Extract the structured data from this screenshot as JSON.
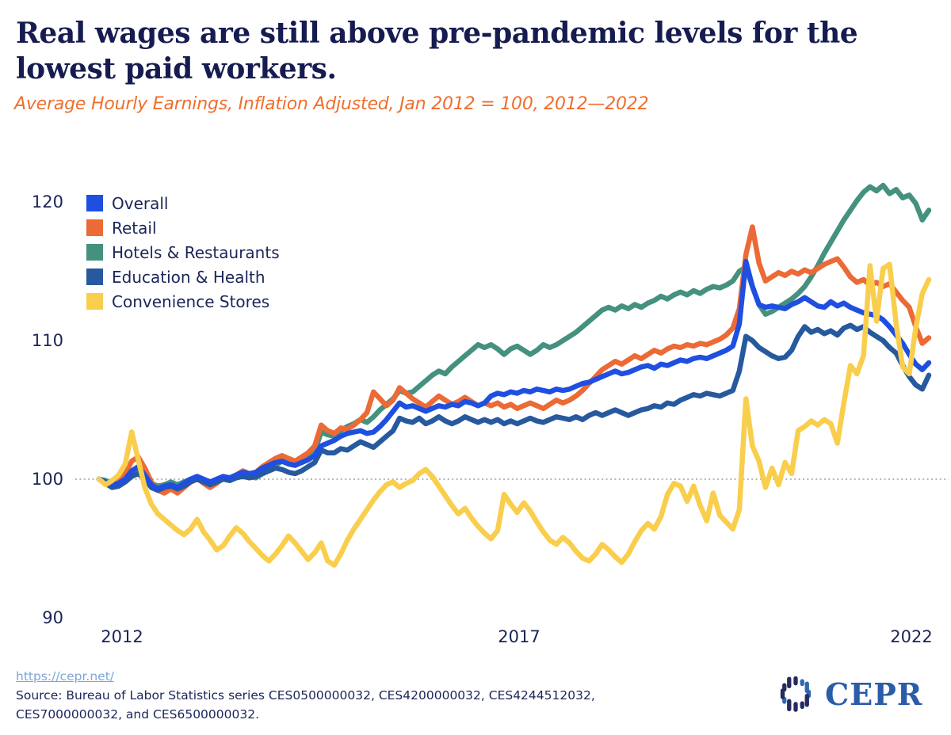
{
  "header": {
    "title_line1": "Real wages are still above pre-pandemic levels for the",
    "title_line2": "lowest paid workers.",
    "subtitle": "Average Hourly Earnings, Inflation Adjusted, Jan 2012 = 100, 2012—2022"
  },
  "chart_data": {
    "type": "line",
    "title": "Real wages are still above pre-pandemic levels for the lowest paid workers.",
    "subtitle": "Average Hourly Earnings, Inflation Adjusted, Jan 2012 = 100, 2012—2022",
    "x_start": "2012-01",
    "x_end": "2022-08",
    "frequency": "monthly",
    "x_tick_labels": [
      "2012",
      "2017",
      "2022"
    ],
    "y_ticks": [
      120,
      110,
      100,
      90
    ],
    "ylim": [
      88,
      122
    ],
    "baseline_gridline": 100,
    "grid": "dotted horizontal line at 100 only",
    "legend_position": "top-left inside plot",
    "series": [
      {
        "key": "overall",
        "name": "Overall",
        "color": "#1e4fe0",
        "values": [
          100,
          99.8,
          99.6,
          99.7,
          100,
          100.6,
          100.9,
          100.3,
          99.6,
          99.3,
          99.5,
          99.6,
          99.4,
          99.7,
          100,
          100.2,
          100,
          99.8,
          100,
          100.2,
          100.1,
          100.3,
          100.5,
          100.4,
          100.5,
          100.8,
          101,
          101.2,
          101.3,
          101.1,
          101,
          101.2,
          101.4,
          101.7,
          102.4,
          102.6,
          102.8,
          103.1,
          103.3,
          103.4,
          103.5,
          103.3,
          103.4,
          103.8,
          104.3,
          104.9,
          105.5,
          105.2,
          105.3,
          105.1,
          104.9,
          105.1,
          105.3,
          105.2,
          105.4,
          105.3,
          105.6,
          105.5,
          105.3,
          105.5,
          106,
          106.2,
          106.1,
          106.3,
          106.2,
          106.4,
          106.3,
          106.5,
          106.4,
          106.3,
          106.5,
          106.4,
          106.5,
          106.7,
          106.9,
          107,
          107.2,
          107.4,
          107.6,
          107.8,
          107.6,
          107.7,
          107.9,
          108.1,
          108.2,
          108,
          108.3,
          108.2,
          108.4,
          108.6,
          108.5,
          108.7,
          108.8,
          108.7,
          108.9,
          109.1,
          109.3,
          109.6,
          111.2,
          115.7,
          113.9,
          112.6,
          112.4,
          112.5,
          112.4,
          112.3,
          112.6,
          112.8,
          113.1,
          112.8,
          112.5,
          112.4,
          112.8,
          112.5,
          112.7,
          112.4,
          112.2,
          112,
          111.9,
          111.8,
          111.5,
          111,
          110.4,
          109.8,
          109,
          108.3,
          107.9,
          108.4
        ]
      },
      {
        "key": "retail",
        "name": "Retail",
        "color": "#ec6a35",
        "values": [
          100,
          99.7,
          99.5,
          99.8,
          100.4,
          101.3,
          101.6,
          100.8,
          99.8,
          99.2,
          99,
          99.3,
          99,
          99.4,
          99.8,
          100.1,
          99.7,
          99.4,
          99.7,
          100.1,
          100,
          100.3,
          100.6,
          100.4,
          100.5,
          100.9,
          101.2,
          101.5,
          101.7,
          101.5,
          101.3,
          101.6,
          101.9,
          102.4,
          103.9,
          103.5,
          103.3,
          103.7,
          103.6,
          103.9,
          104.3,
          104.8,
          106.3,
          105.8,
          105.3,
          105.7,
          106.6,
          106.2,
          105.8,
          105.5,
          105.2,
          105.6,
          106,
          105.7,
          105.4,
          105.6,
          105.9,
          105.6,
          105.3,
          105.5,
          105.3,
          105.5,
          105.2,
          105.4,
          105.1,
          105.3,
          105.5,
          105.3,
          105.1,
          105.4,
          105.7,
          105.5,
          105.7,
          106,
          106.4,
          106.9,
          107.4,
          107.9,
          108.2,
          108.5,
          108.3,
          108.6,
          108.9,
          108.7,
          109,
          109.3,
          109.1,
          109.4,
          109.6,
          109.5,
          109.7,
          109.6,
          109.8,
          109.7,
          109.9,
          110.1,
          110.4,
          110.9,
          112.3,
          116.2,
          118.2,
          115.6,
          114.3,
          114.6,
          114.9,
          114.7,
          115,
          114.8,
          115.1,
          114.9,
          115.2,
          115.5,
          115.7,
          115.9,
          115.3,
          114.6,
          114.2,
          114.4,
          114,
          114.2,
          113.9,
          114.1,
          113.5,
          112.9,
          112.4,
          111,
          109.8,
          110.2
        ]
      },
      {
        "key": "hotels",
        "name": "Hotels & Restaurants",
        "color": "#45917f",
        "values": [
          100,
          99.9,
          99.7,
          99.8,
          100,
          100.4,
          100.6,
          100.2,
          99.7,
          99.5,
          99.6,
          99.8,
          99.6,
          99.8,
          100,
          100.1,
          99.9,
          99.7,
          99.9,
          100.1,
          100,
          100.2,
          100.3,
          100.2,
          100.1,
          100.4,
          100.7,
          101,
          101.3,
          101.1,
          101,
          101.3,
          101.6,
          102,
          103.4,
          103.2,
          103.1,
          103.5,
          103.8,
          104,
          104.3,
          104.1,
          104.5,
          105,
          105.4,
          105.8,
          106.4,
          106.2,
          106.3,
          106.7,
          107.1,
          107.5,
          107.8,
          107.6,
          108.1,
          108.5,
          108.9,
          109.3,
          109.7,
          109.5,
          109.7,
          109.4,
          109,
          109.4,
          109.6,
          109.3,
          109,
          109.3,
          109.7,
          109.5,
          109.7,
          110,
          110.3,
          110.6,
          111,
          111.4,
          111.8,
          112.2,
          112.4,
          112.2,
          112.5,
          112.3,
          112.6,
          112.4,
          112.7,
          112.9,
          113.2,
          113,
          113.3,
          113.5,
          113.3,
          113.6,
          113.4,
          113.7,
          113.9,
          113.8,
          114,
          114.3,
          115,
          115.3,
          113.9,
          112.6,
          111.9,
          112.1,
          112.4,
          112.7,
          113,
          113.4,
          113.9,
          114.6,
          115.4,
          116.3,
          117.1,
          117.9,
          118.7,
          119.4,
          120.1,
          120.7,
          121.1,
          120.8,
          121.2,
          120.6,
          120.9,
          120.3,
          120.5,
          119.9,
          118.7,
          119.4
        ]
      },
      {
        "key": "education",
        "name": "Education & Health",
        "color": "#27599f",
        "values": [
          100,
          99.7,
          99.4,
          99.5,
          99.8,
          100.2,
          100.4,
          100,
          99.4,
          99.2,
          99.4,
          99.5,
          99.3,
          99.5,
          99.8,
          100,
          99.8,
          99.6,
          99.8,
          100,
          99.9,
          100.1,
          100.2,
          100.1,
          100.2,
          100.4,
          100.6,
          100.8,
          100.7,
          100.5,
          100.4,
          100.6,
          100.9,
          101.2,
          102.1,
          101.9,
          101.9,
          102.2,
          102.1,
          102.4,
          102.7,
          102.5,
          102.3,
          102.7,
          103.1,
          103.5,
          104.4,
          104.2,
          104.1,
          104.4,
          104,
          104.2,
          104.5,
          104.2,
          104,
          104.2,
          104.5,
          104.3,
          104.1,
          104.3,
          104.1,
          104.3,
          104,
          104.2,
          104,
          104.2,
          104.4,
          104.2,
          104.1,
          104.3,
          104.5,
          104.4,
          104.3,
          104.5,
          104.3,
          104.6,
          104.8,
          104.6,
          104.8,
          105,
          104.8,
          104.6,
          104.8,
          105,
          105.1,
          105.3,
          105.2,
          105.5,
          105.4,
          105.7,
          105.9,
          106.1,
          106,
          106.2,
          106.1,
          106,
          106.2,
          106.4,
          107.8,
          110.3,
          110,
          109.5,
          109.2,
          108.9,
          108.7,
          108.8,
          109.3,
          110.3,
          111,
          110.6,
          110.8,
          110.5,
          110.7,
          110.4,
          110.9,
          111.1,
          110.8,
          111,
          110.6,
          110.3,
          110,
          109.5,
          109.1,
          108.2,
          107.4,
          106.8,
          106.5,
          107.5
        ]
      },
      {
        "key": "convenience",
        "name": "Convenience Stores",
        "color": "#f9ce4d",
        "values": [
          100,
          99.6,
          99.9,
          100.3,
          101.1,
          103.4,
          101.4,
          99.4,
          98.2,
          97.5,
          97.1,
          96.7,
          96.3,
          96,
          96.4,
          97.1,
          96.2,
          95.6,
          94.9,
          95.2,
          95.9,
          96.5,
          96.1,
          95.5,
          95,
          94.5,
          94.1,
          94.6,
          95.2,
          95.9,
          95.4,
          94.8,
          94.2,
          94.7,
          95.4,
          94.1,
          93.8,
          94.6,
          95.6,
          96.4,
          97.1,
          97.8,
          98.5,
          99.1,
          99.6,
          99.8,
          99.4,
          99.7,
          99.9,
          100.4,
          100.7,
          100.2,
          99.5,
          98.8,
          98.1,
          97.5,
          97.9,
          97.2,
          96.6,
          96.1,
          95.7,
          96.3,
          98.9,
          98.2,
          97.6,
          98.3,
          97.7,
          96.9,
          96.2,
          95.6,
          95.3,
          95.8,
          95.4,
          94.8,
          94.3,
          94.1,
          94.6,
          95.3,
          94.9,
          94.4,
          94,
          94.6,
          95.5,
          96.3,
          96.8,
          96.4,
          97.3,
          98.9,
          99.7,
          99.5,
          98.4,
          99.5,
          98.1,
          97,
          99,
          97.4,
          96.9,
          96.4,
          97.8,
          105.8,
          102.4,
          101.3,
          99.4,
          100.8,
          99.6,
          101.2,
          100.4,
          103.5,
          103.8,
          104.2,
          103.9,
          104.3,
          104,
          102.6,
          105.5,
          108.2,
          107.6,
          108.9,
          115.4,
          111.4,
          115.2,
          115.5,
          111.2,
          108.1,
          107.6,
          110.9,
          113.4,
          114.4
        ]
      }
    ]
  },
  "footer": {
    "link": "https://cepr.net/",
    "source_line1": "Source: Bureau of Labor Statistics series CES0500000032, CES4200000032, CES4244512032,",
    "source_line2": "CES7000000032, and CES6500000032.",
    "logo_text": "CEPR"
  }
}
